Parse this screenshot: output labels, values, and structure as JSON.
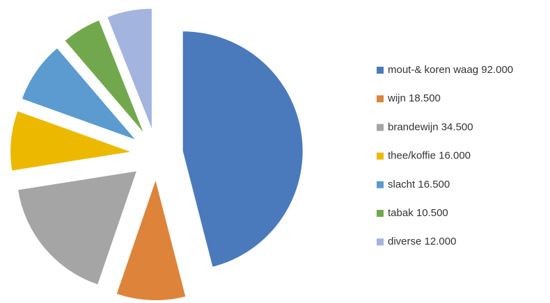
{
  "chart_data": {
    "type": "pie",
    "categories": [
      "mout-& koren waag",
      "wijn",
      "brandewijn",
      "thee/koffie",
      "slacht",
      "tabak",
      "diverse"
    ],
    "values": [
      92000,
      18500,
      34500,
      16000,
      16500,
      10500,
      12000
    ],
    "value_labels": [
      "92.000",
      "18.500",
      "34.500",
      "16.000",
      "16.500",
      "10.500",
      "12.000"
    ],
    "colors": [
      "#4a7abc",
      "#dd843a",
      "#a5a5a5",
      "#ecb900",
      "#5b9bcf",
      "#72a84d",
      "#a3b4df"
    ],
    "explode": true,
    "legend": "right"
  }
}
